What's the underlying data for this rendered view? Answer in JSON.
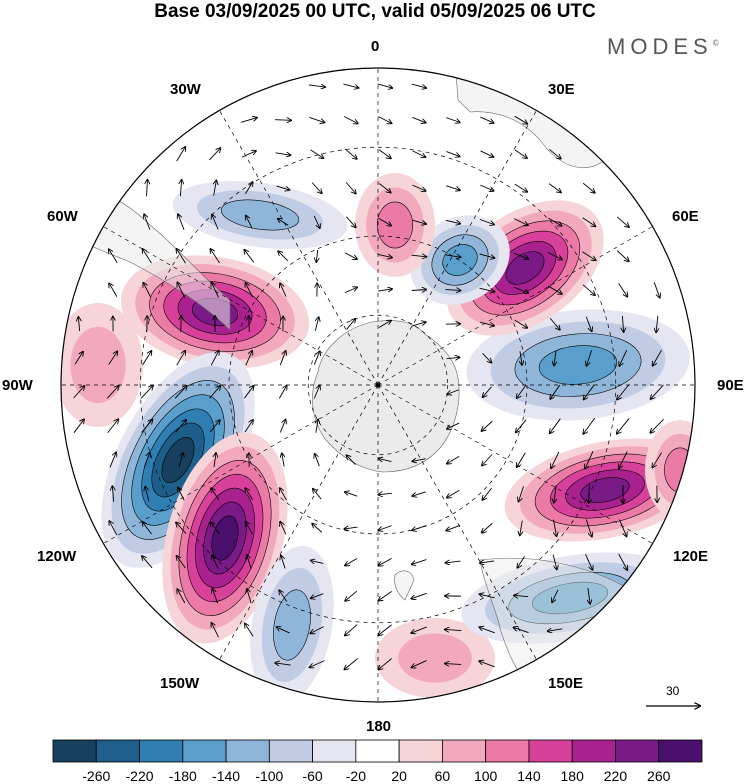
{
  "header": {
    "title": "Base 03/09/2025 00 UTC, valid 05/09/2025 06 UTC",
    "brand": "MODES",
    "brand_mark": "©"
  },
  "map": {
    "projection": "south-polar-stereographic",
    "longitude_labels": {
      "lon_0": "0",
      "lon_30e": "30E",
      "lon_60e": "60E",
      "lon_90e": "90E",
      "lon_120e": "120E",
      "lon_150e": "150E",
      "lon_180": "180",
      "lon_150w": "150W",
      "lon_120w": "120W",
      "lon_90w": "90W",
      "lon_60w": "60W",
      "lon_30w": "30W"
    },
    "reference_vector": {
      "label": "30",
      "units_note": "wind vector scale"
    }
  },
  "chart_data": {
    "type": "contour-map",
    "field": "geopotential height anomaly with wind vectors",
    "colorbar": {
      "ticks": [
        "-260",
        "-220",
        "-180",
        "-140",
        "-100",
        "-60",
        "-20",
        "20",
        "60",
        "100",
        "140",
        "180",
        "220",
        "260"
      ],
      "colors": [
        "#16405e",
        "#1d5f8a",
        "#2f7fb3",
        "#5a9ecb",
        "#8fb6d8",
        "#c0cce4",
        "#e6e6f2",
        "#ffffff",
        "#f6d4d8",
        "#f2a9bd",
        "#ec7aa7",
        "#d8419a",
        "#a8218f",
        "#7a1a86",
        "#4b0f6d"
      ]
    },
    "anomaly_centres": [
      {
        "sign": "positive",
        "region": "near 80W",
        "intensity": "strong"
      },
      {
        "sign": "negative",
        "region": "near 105W",
        "intensity": "strong"
      },
      {
        "sign": "positive",
        "region": "near 135W",
        "intensity": "strong"
      },
      {
        "sign": "negative",
        "region": "near 160W",
        "intensity": "moderate"
      },
      {
        "sign": "positive",
        "region": "near 170E",
        "intensity": "weak"
      },
      {
        "sign": "negative",
        "region": "near 135E",
        "intensity": "moderate"
      },
      {
        "sign": "positive",
        "region": "near 110E",
        "intensity": "strong"
      },
      {
        "sign": "negative",
        "region": "near 85E",
        "intensity": "moderate"
      },
      {
        "sign": "positive",
        "region": "near 45E",
        "intensity": "strong"
      },
      {
        "sign": "negative",
        "region": "near 30E",
        "intensity": "moderate"
      },
      {
        "sign": "positive",
        "region": "near 5W",
        "intensity": "moderate"
      },
      {
        "sign": "negative",
        "region": "near 45W",
        "intensity": "weak"
      }
    ]
  }
}
